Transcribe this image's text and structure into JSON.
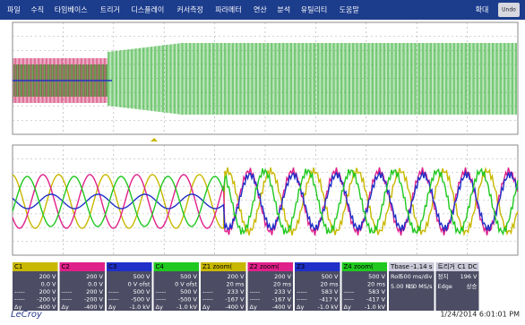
{
  "menu": {
    "items": [
      "파일",
      "수직",
      "타임베이스",
      "트리거",
      "디스플레이",
      "커서측정",
      "파라메터",
      "연산",
      "분석",
      "유틸리티",
      "도움말"
    ],
    "zoom": "확대",
    "undo": "Undo"
  },
  "channels": [
    {
      "label": "C1",
      "color": "#c8b800",
      "rows": [
        [
          "",
          "200 V"
        ],
        [
          "",
          "0.0 V"
        ],
        [
          "-----",
          "200 V"
        ],
        [
          "-----",
          "-200 V"
        ],
        [
          "Δy",
          "-400 V"
        ]
      ]
    },
    {
      "label": "C2",
      "color": "#e0208a",
      "rows": [
        [
          "",
          "200 V"
        ],
        [
          "",
          "0.0 V"
        ],
        [
          "-----",
          "200 V"
        ],
        [
          "-----",
          "-200 V"
        ],
        [
          "Δy",
          "-400 V"
        ]
      ]
    },
    {
      "label": "C3",
      "color": "#2030c8",
      "rows": [
        [
          "",
          "500 V"
        ],
        [
          "",
          "0 V ofst"
        ],
        [
          "-----",
          "500 V"
        ],
        [
          "-----",
          "-500 V"
        ],
        [
          "Δy",
          "-1.0 kV"
        ]
      ]
    },
    {
      "label": "C4",
      "color": "#20c820",
      "rows": [
        [
          "",
          "500 V"
        ],
        [
          "",
          "0 V ofst"
        ],
        [
          "-----",
          "500 V"
        ],
        [
          "-----",
          "-500 V"
        ],
        [
          "Δy",
          "-1.0 kV"
        ]
      ]
    },
    {
      "label": "Z1 zoom(",
      "color": "#c8b800",
      "rows": [
        [
          "",
          "200 V"
        ],
        [
          "",
          "20 ms"
        ],
        [
          "-----",
          "233 V"
        ],
        [
          "-----",
          "-167 V"
        ],
        [
          "Δy",
          "-400 V"
        ]
      ]
    },
    {
      "label": "Z2 zoom(",
      "color": "#e0208a",
      "rows": [
        [
          "",
          "200 V"
        ],
        [
          "",
          "20 ms"
        ],
        [
          "-----",
          "233 V"
        ],
        [
          "-----",
          "-167 V"
        ],
        [
          "Δy",
          "-400 V"
        ]
      ]
    },
    {
      "label": "Z3",
      "color": "#2030c8",
      "rows": [
        [
          "",
          "500 V"
        ],
        [
          "",
          "20 ms"
        ],
        [
          "-----",
          "583 V"
        ],
        [
          "-----",
          "-417 V"
        ],
        [
          "Δy",
          "-1.0 kV"
        ]
      ]
    },
    {
      "label": "Z4 zoom(",
      "color": "#20c820",
      "rows": [
        [
          "",
          "500 V"
        ],
        [
          "",
          "20 ms"
        ],
        [
          "-----",
          "583 V"
        ],
        [
          "-----",
          "-417 V"
        ],
        [
          "Δy",
          "-1.0 kV"
        ]
      ]
    }
  ],
  "timebase": {
    "label": "Tbase",
    "offset": "-1.14 s",
    "rows": [
      [
        "Roll",
        "500 ms/div"
      ],
      [
        "5.00 MS",
        "1.0 MS/s"
      ]
    ]
  },
  "trigger": {
    "label": "트리거",
    "source": "C1 DC",
    "rows": [
      [
        "정지",
        "196 V"
      ],
      [
        "Edge",
        "상승"
      ]
    ]
  },
  "footer": {
    "brand": "LeCroy",
    "timestamp": "1/24/2014 6:01:01 PM"
  }
}
